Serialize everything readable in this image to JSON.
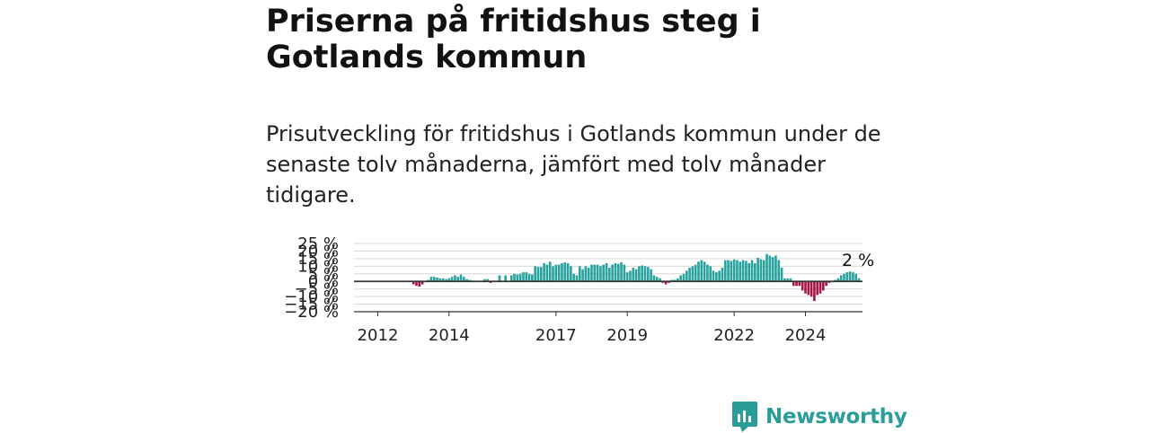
{
  "title": "Priserna på fritidshus steg i Gotlands kommun",
  "subtitle": "Prisutveckling för fritidshus i Gotlands kommun under de senaste tolv månaderna, jämfört med tolv månader tidigare.",
  "brand": {
    "name": "Newsworthy",
    "color": "#2a9d98"
  },
  "chart_data": {
    "type": "bar",
    "title": "Priserna på fritidshus steg i Gotlands kommun",
    "xlabel": "",
    "ylabel": "",
    "ylim": [
      -20,
      25
    ],
    "y_ticks": [
      {
        "value": 25,
        "label": "25 %"
      },
      {
        "value": 20,
        "label": "20 %"
      },
      {
        "value": 15,
        "label": "15 %"
      },
      {
        "value": 10,
        "label": "10 %"
      },
      {
        "value": 5,
        "label": "5 %"
      },
      {
        "value": 0,
        "label": "0 %"
      },
      {
        "value": -5,
        "label": "−5 %"
      },
      {
        "value": -10,
        "label": "−10 %"
      },
      {
        "value": -15,
        "label": "−15 %"
      },
      {
        "value": -20,
        "label": "−20 %"
      }
    ],
    "x_ticks": [
      {
        "value": "2012-01",
        "label": "2012"
      },
      {
        "value": "2014-01",
        "label": "2014"
      },
      {
        "value": "2017-01",
        "label": "2017"
      },
      {
        "value": "2019-01",
        "label": "2019"
      },
      {
        "value": "2022-01",
        "label": "2022"
      },
      {
        "value": "2024-01",
        "label": "2024"
      }
    ],
    "grid": true,
    "colors": {
      "positive": "#2aa39e",
      "negative": "#a8174a"
    },
    "annotation": {
      "label": "2 %",
      "x": "2025-04",
      "value": 2
    },
    "series": [
      {
        "start": "2011-01",
        "values": [
          0,
          0,
          0,
          0,
          0,
          0,
          0,
          0,
          0,
          0,
          0,
          0,
          0,
          0,
          0,
          0,
          0,
          0,
          0,
          0,
          0,
          0,
          0,
          0,
          -2,
          -3,
          -3.5,
          -2,
          0,
          1,
          3,
          3,
          2.5,
          2,
          2,
          1.5,
          2,
          3,
          4,
          3,
          4.5,
          3,
          1.5,
          1,
          0,
          0,
          0,
          0,
          1.5,
          1.5,
          -1,
          0,
          0,
          4,
          0,
          4,
          0,
          4,
          5,
          4.5,
          5,
          6,
          6,
          5,
          4.5,
          10,
          9.5,
          9.5,
          12,
          11,
          13,
          10,
          11,
          11,
          12,
          12.5,
          12,
          10,
          5,
          4,
          10,
          8,
          10,
          9,
          11,
          11,
          11,
          10,
          11,
          12,
          9,
          11,
          12,
          11.5,
          12.5,
          11,
          6,
          7,
          9,
          8,
          10,
          10.5,
          10,
          9.5,
          8,
          4,
          3,
          2,
          -1,
          -2,
          -1,
          1,
          1,
          2,
          4,
          5,
          7,
          9,
          10,
          11,
          13,
          14,
          13,
          11,
          10,
          7,
          6,
          7,
          9,
          14,
          14,
          13.5,
          14.5,
          14,
          13,
          14,
          13.5,
          12,
          14,
          12,
          15.5,
          14.5,
          14,
          18,
          17,
          16,
          17,
          14,
          9,
          2,
          2,
          2,
          -3,
          -3,
          -3,
          -6,
          -8,
          -9,
          -10,
          -13,
          -9,
          -8,
          -6,
          -3,
          -1,
          0,
          1,
          2,
          4,
          5,
          6,
          6.5,
          6,
          5,
          2,
          0
        ]
      }
    ]
  }
}
